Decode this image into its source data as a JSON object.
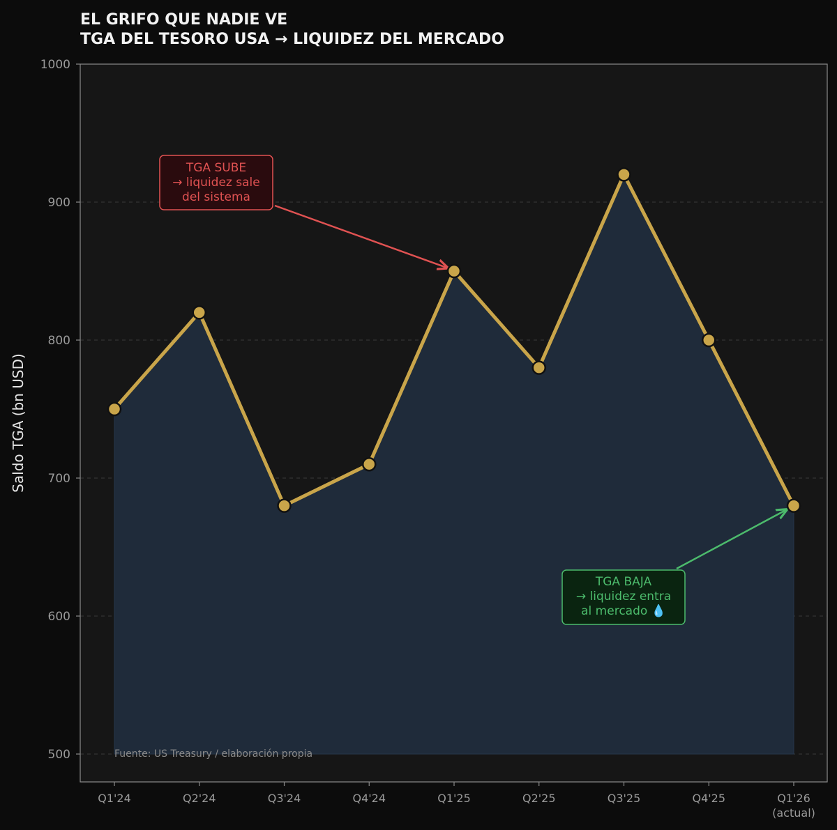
{
  "chart_data": {
    "type": "line",
    "title_lines": [
      "EL GRIFO QUE NADIE VE",
      "TGA DEL TESORO USA → LIQUIDEZ DEL MERCADO"
    ],
    "ylabel": "Saldo TGA (bn USD)",
    "xlabel": "",
    "ylim": [
      500,
      1000
    ],
    "yticks": [
      500,
      600,
      700,
      800,
      900,
      1000
    ],
    "grid": "horizontal dashed",
    "categories": [
      "Q1'24",
      "Q2'24",
      "Q3'24",
      "Q4'24",
      "Q1'25",
      "Q2'25",
      "Q3'25",
      "Q4'25",
      "Q1'26"
    ],
    "category_sublabels": [
      "",
      "",
      "",
      "",
      "",
      "",
      "",
      "",
      "(actual)"
    ],
    "values": [
      750,
      820,
      680,
      710,
      850,
      780,
      920,
      800,
      680
    ],
    "colors": {
      "line": "#c9a54a",
      "fill": "#1f2b3a",
      "marker_edge": "#111111",
      "plot_bg": "#161616",
      "page_bg": "#0c0c0c",
      "up_annotation": "#e05252",
      "down_annotation": "#4cbb6c"
    },
    "annotations": [
      {
        "id": "up",
        "lines": [
          "TGA SUBE",
          "→ liquidez sale",
          "del sistema"
        ],
        "target_category": "Q1'25",
        "target_value": 850
      },
      {
        "id": "down",
        "lines": [
          "TGA BAJA",
          "→ liquidez entra",
          "al mercado 💧"
        ],
        "target_category": "Q1'26",
        "target_value": 680
      }
    ],
    "source": "Fuente: US Treasury / elaboración propia"
  }
}
